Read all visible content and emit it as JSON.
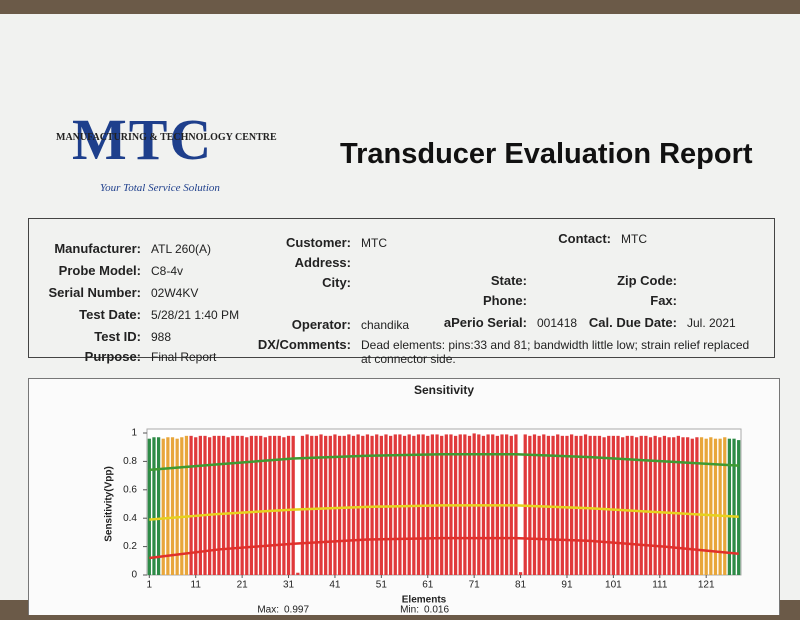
{
  "header": {
    "logo": "MTC",
    "logo_sub": "MANUFACTURING & TECHNOLOGY CENTRE",
    "tagline": "Your Total Service Solution",
    "title": "Transducer Evaluation Report"
  },
  "info": {
    "left": [
      {
        "label": "Manufacturer:",
        "value": "ATL 260(A)"
      },
      {
        "label": "Probe Model:",
        "value": "C8-4v"
      },
      {
        "label": "Serial Number:",
        "value": "02W4KV"
      },
      {
        "label": "Test Date:",
        "value": "5/28/21 1:40 PM"
      },
      {
        "label": "Test ID:",
        "value": "988"
      },
      {
        "label": "Purpose:",
        "value": "Final Report"
      }
    ],
    "middle": [
      {
        "label": "Customer:",
        "value": "MTC"
      },
      {
        "label": "Address:"
      },
      {
        "label": "City:"
      },
      {
        "label": "Operator:",
        "value": "chandika"
      },
      {
        "label": "DX/Comments:",
        "value": "Dead elements: pins:33 and 81; bandwidth little low; strain relief replaced at connector side."
      }
    ],
    "right": [
      {
        "label": "Contact:",
        "value": "MTC"
      },
      {
        "label": "State:"
      },
      {
        "label": "Zip Code:"
      },
      {
        "label": "Phone:"
      },
      {
        "label": "Fax:"
      },
      {
        "label": "aPerio Serial:",
        "value": "001418"
      },
      {
        "label": "Cal. Due Date:",
        "value": "Jul. 2021"
      }
    ]
  },
  "chart_data": {
    "type": "bar",
    "title": "Sensitivity",
    "x_label": "Elements",
    "y_label": "Sensitivity(Vpp)",
    "xlim": [
      0.5,
      128.5
    ],
    "xticks": [
      1,
      11,
      21,
      31,
      41,
      51,
      61,
      71,
      81,
      91,
      101,
      111,
      121
    ],
    "ylim": [
      0,
      1
    ],
    "yticks": [
      0,
      0.2,
      0.4,
      0.6,
      0.8,
      1
    ],
    "color_ranges": [
      {
        "from": 1,
        "to": 3,
        "color": "#2e8b47"
      },
      {
        "from": 4,
        "to": 9,
        "color": "#e8a63a"
      },
      {
        "from": 10,
        "to": 119,
        "color": "#e0393b"
      },
      {
        "from": 120,
        "to": 125,
        "color": "#e8a63a"
      },
      {
        "from": 126,
        "to": 128,
        "color": "#2e8b47"
      }
    ],
    "values": [
      0.96,
      0.97,
      0.97,
      0.96,
      0.97,
      0.97,
      0.96,
      0.97,
      0.98,
      0.98,
      0.97,
      0.98,
      0.98,
      0.97,
      0.98,
      0.98,
      0.98,
      0.97,
      0.98,
      0.98,
      0.98,
      0.97,
      0.98,
      0.98,
      0.98,
      0.97,
      0.98,
      0.98,
      0.98,
      0.97,
      0.98,
      0.98,
      0.016,
      0.98,
      0.99,
      0.98,
      0.98,
      0.99,
      0.98,
      0.98,
      0.99,
      0.98,
      0.98,
      0.99,
      0.98,
      0.99,
      0.98,
      0.99,
      0.98,
      0.99,
      0.98,
      0.99,
      0.98,
      0.99,
      0.99,
      0.98,
      0.99,
      0.98,
      0.99,
      0.99,
      0.98,
      0.99,
      0.99,
      0.98,
      0.99,
      0.99,
      0.98,
      0.99,
      0.99,
      0.98,
      0.997,
      0.99,
      0.98,
      0.99,
      0.99,
      0.98,
      0.99,
      0.99,
      0.98,
      0.99,
      0.02,
      0.99,
      0.98,
      0.99,
      0.98,
      0.99,
      0.98,
      0.98,
      0.99,
      0.98,
      0.98,
      0.99,
      0.98,
      0.98,
      0.99,
      0.98,
      0.98,
      0.98,
      0.97,
      0.98,
      0.98,
      0.98,
      0.97,
      0.98,
      0.98,
      0.97,
      0.98,
      0.98,
      0.97,
      0.98,
      0.97,
      0.98,
      0.97,
      0.97,
      0.98,
      0.97,
      0.97,
      0.96,
      0.97,
      0.97,
      0.96,
      0.97,
      0.96,
      0.96,
      0.97,
      0.96,
      0.96,
      0.95
    ],
    "lines": [
      {
        "color": "#3f9a32",
        "x": [
          1,
          16,
          32,
          48,
          64,
          80,
          96,
          112,
          128
        ],
        "values": [
          0.74,
          0.78,
          0.82,
          0.84,
          0.85,
          0.85,
          0.83,
          0.8,
          0.77
        ]
      },
      {
        "color": "#e6d21e",
        "x": [
          1,
          16,
          32,
          48,
          64,
          80,
          96,
          112,
          128
        ],
        "values": [
          0.39,
          0.43,
          0.46,
          0.48,
          0.49,
          0.49,
          0.47,
          0.44,
          0.41
        ]
      },
      {
        "color": "#e0302b",
        "x": [
          1,
          16,
          32,
          48,
          64,
          80,
          96,
          112,
          128
        ],
        "values": [
          0.12,
          0.18,
          0.22,
          0.25,
          0.26,
          0.26,
          0.24,
          0.2,
          0.15
        ]
      }
    ],
    "stats": [
      {
        "label": "Max:",
        "value": "0.997"
      },
      {
        "label": "Min:",
        "value": "0.016"
      }
    ]
  }
}
